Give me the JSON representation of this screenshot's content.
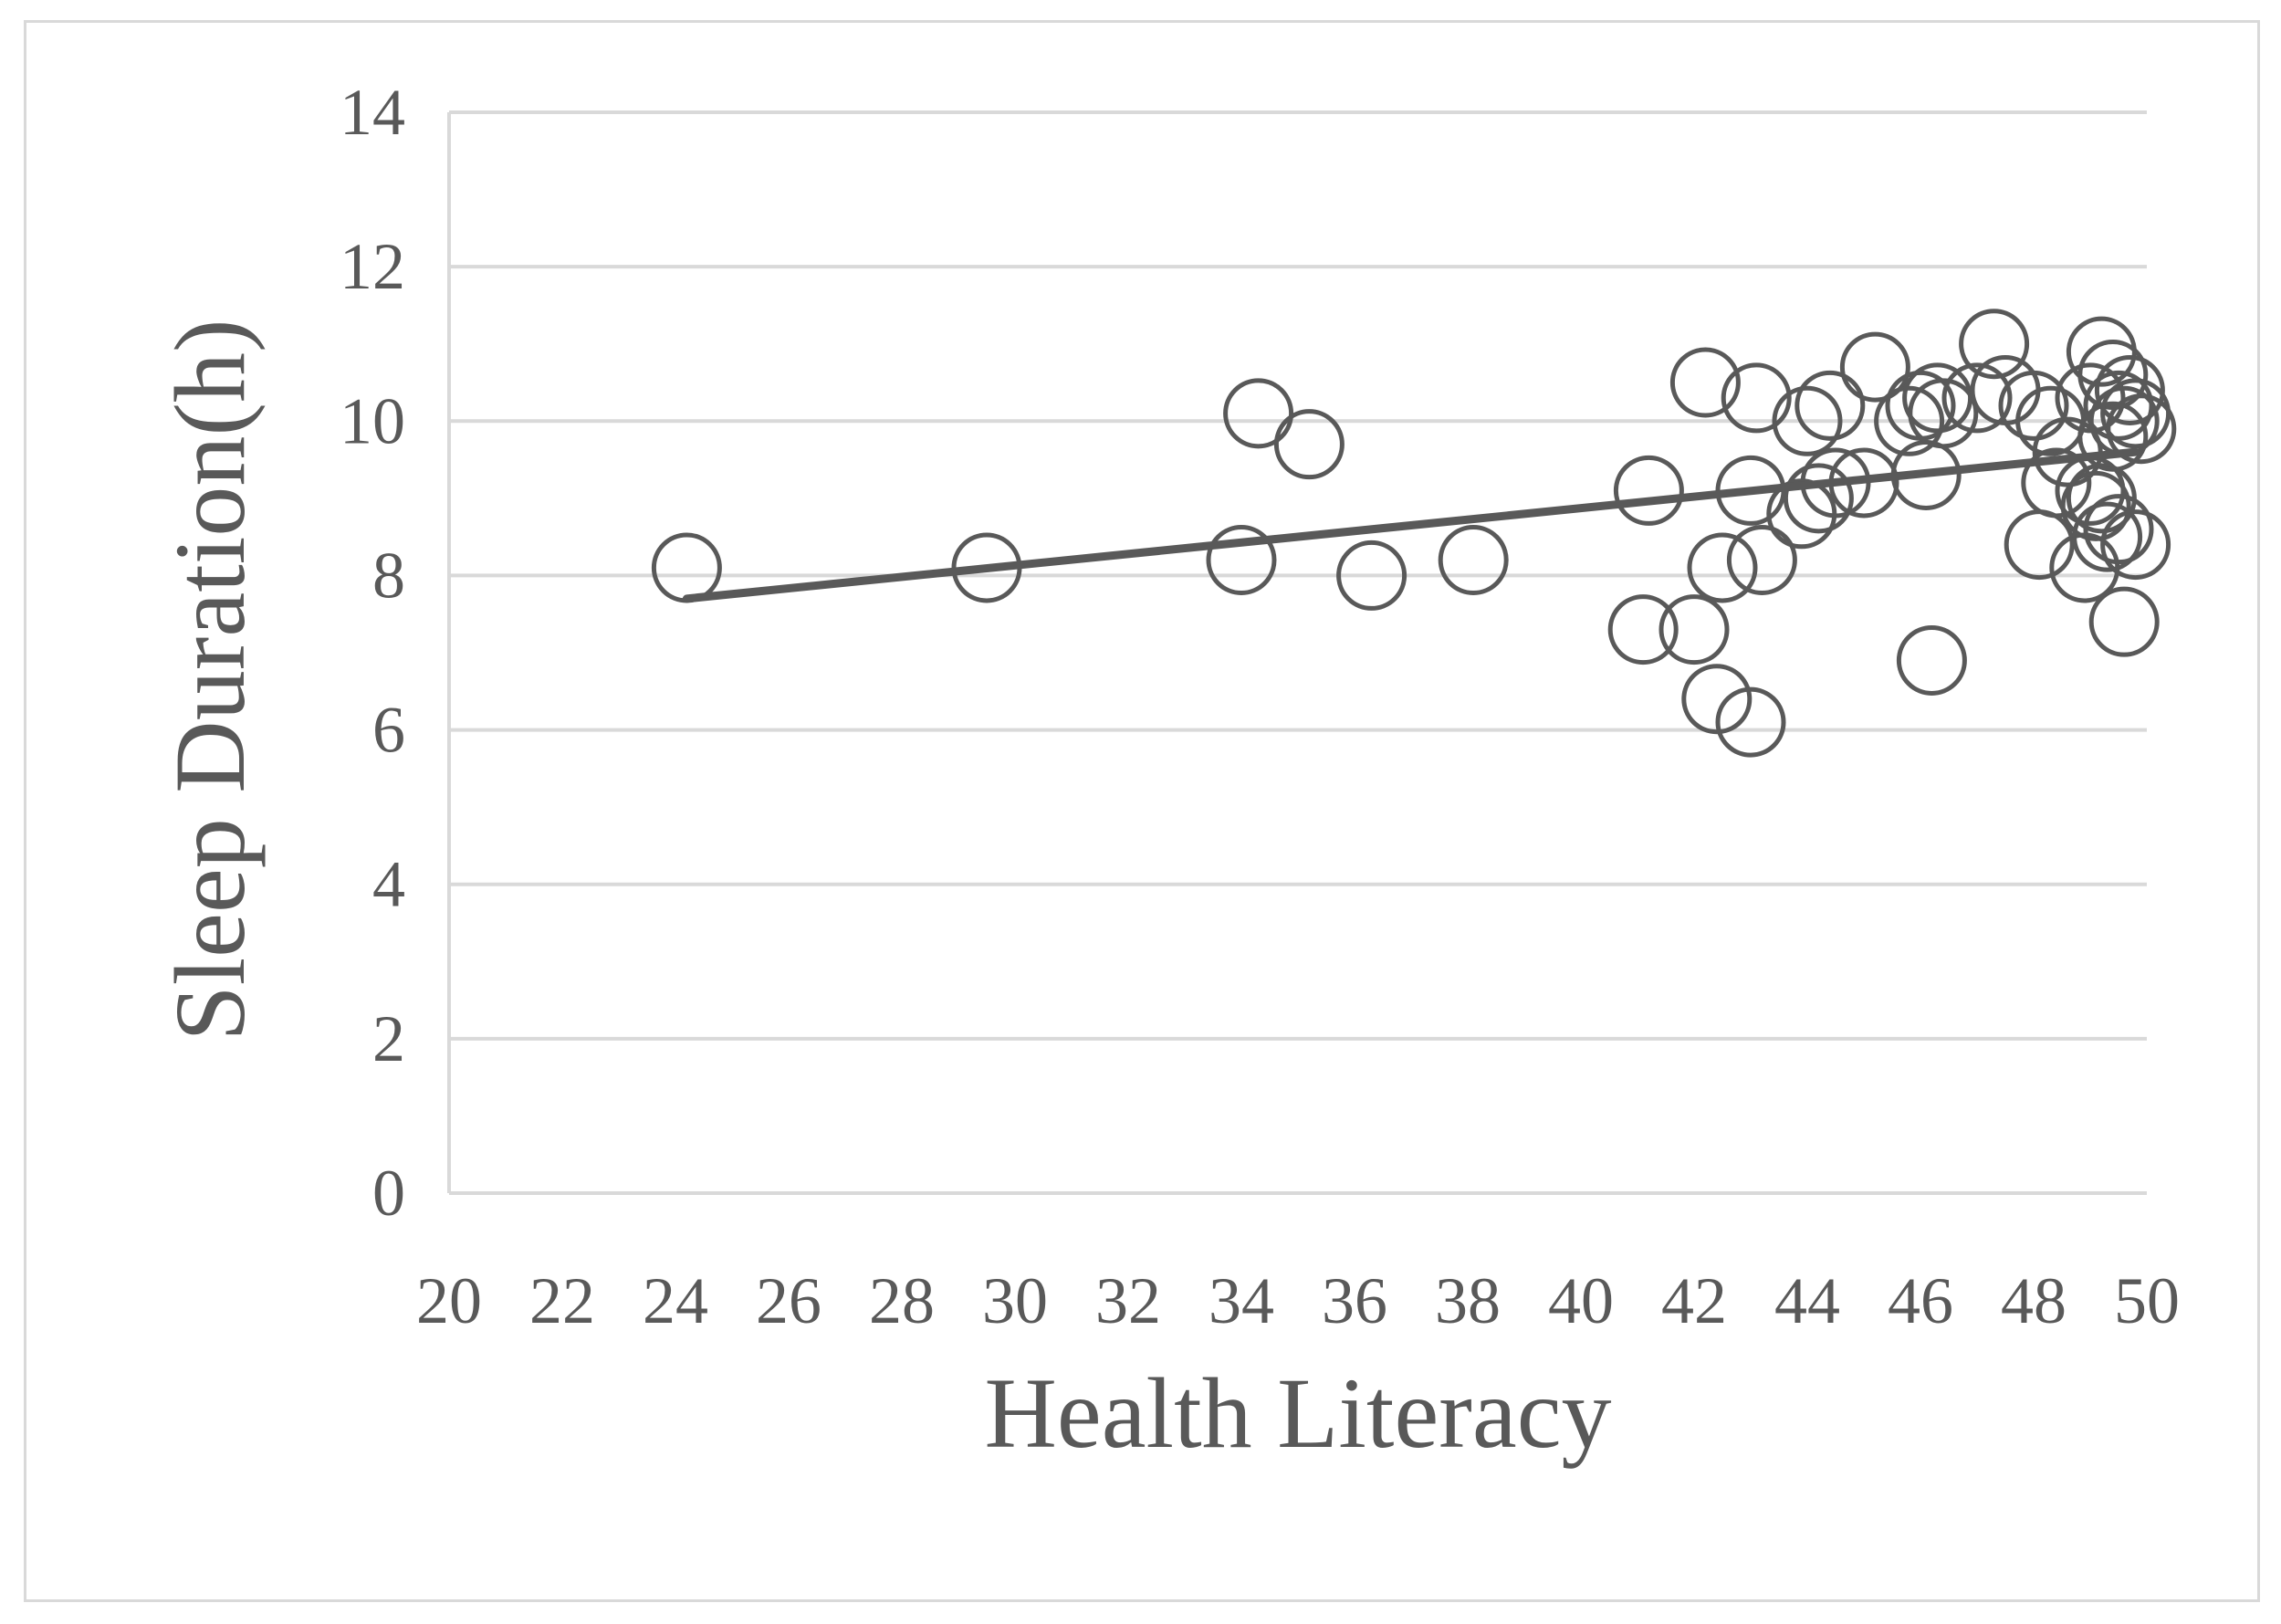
{
  "chart_data": {
    "type": "scatter",
    "title": "",
    "xlabel": "Health Literacy",
    "ylabel": "Sleep Duration(h)",
    "xlim": [
      20,
      50
    ],
    "ylim": [
      0,
      14
    ],
    "x_ticks": [
      "20",
      "22",
      "24",
      "26",
      "28",
      "30",
      "32",
      "34",
      "36",
      "38",
      "40",
      "42",
      "44",
      "46",
      "48",
      "50"
    ],
    "y_ticks": [
      "0",
      "2",
      "4",
      "6",
      "8",
      "10",
      "12",
      "14"
    ],
    "grid": true,
    "legend": "none",
    "marker": "open-circle",
    "color": "#595959",
    "gridline_color": "#d9d9d9",
    "series": [
      {
        "points": [
          [
            24.2,
            8.1
          ],
          [
            29.5,
            8.1
          ],
          [
            34.0,
            8.2
          ],
          [
            34.3,
            10.1
          ],
          [
            35.2,
            9.7
          ],
          [
            36.3,
            8.0
          ],
          [
            38.1,
            8.2
          ],
          [
            41.1,
            7.3
          ],
          [
            41.2,
            9.1
          ],
          [
            42.0,
            7.3
          ],
          [
            42.2,
            10.5
          ],
          [
            42.4,
            6.4
          ],
          [
            42.5,
            8.1
          ],
          [
            43.0,
            6.1
          ],
          [
            43.0,
            9.1
          ],
          [
            43.1,
            10.3
          ],
          [
            43.2,
            8.2
          ],
          [
            43.9,
            8.8
          ],
          [
            44.0,
            10.0
          ],
          [
            44.2,
            9.0
          ],
          [
            44.4,
            10.2
          ],
          [
            44.5,
            9.2
          ],
          [
            45.0,
            9.2
          ],
          [
            45.2,
            10.7
          ],
          [
            45.8,
            10.0
          ],
          [
            46.0,
            10.2
          ],
          [
            46.1,
            9.3
          ],
          [
            46.2,
            6.9
          ],
          [
            46.3,
            10.3
          ],
          [
            46.4,
            10.1
          ],
          [
            47.0,
            10.3
          ],
          [
            47.3,
            11.0
          ],
          [
            47.5,
            10.4
          ],
          [
            48.0,
            10.2
          ],
          [
            48.1,
            8.4
          ],
          [
            48.3,
            10.0
          ],
          [
            48.4,
            9.2
          ],
          [
            48.6,
            9.6
          ],
          [
            48.9,
            8.1
          ],
          [
            49.0,
            10.3
          ],
          [
            49.0,
            9.1
          ],
          [
            49.1,
            8.9
          ],
          [
            49.2,
            10.9
          ],
          [
            49.2,
            9.0
          ],
          [
            49.3,
            8.5
          ],
          [
            49.4,
            10.6
          ],
          [
            49.4,
            9.8
          ],
          [
            49.5,
            10.2
          ],
          [
            49.5,
            8.6
          ],
          [
            49.6,
            7.4
          ],
          [
            49.6,
            10.0
          ],
          [
            49.7,
            10.4
          ],
          [
            49.8,
            8.4
          ],
          [
            49.8,
            10.1
          ],
          [
            49.9,
            9.9
          ]
        ]
      }
    ],
    "trendline": {
      "type": "linear",
      "x": [
        24.2,
        49.8
      ],
      "y": [
        7.7,
        9.6
      ]
    }
  }
}
